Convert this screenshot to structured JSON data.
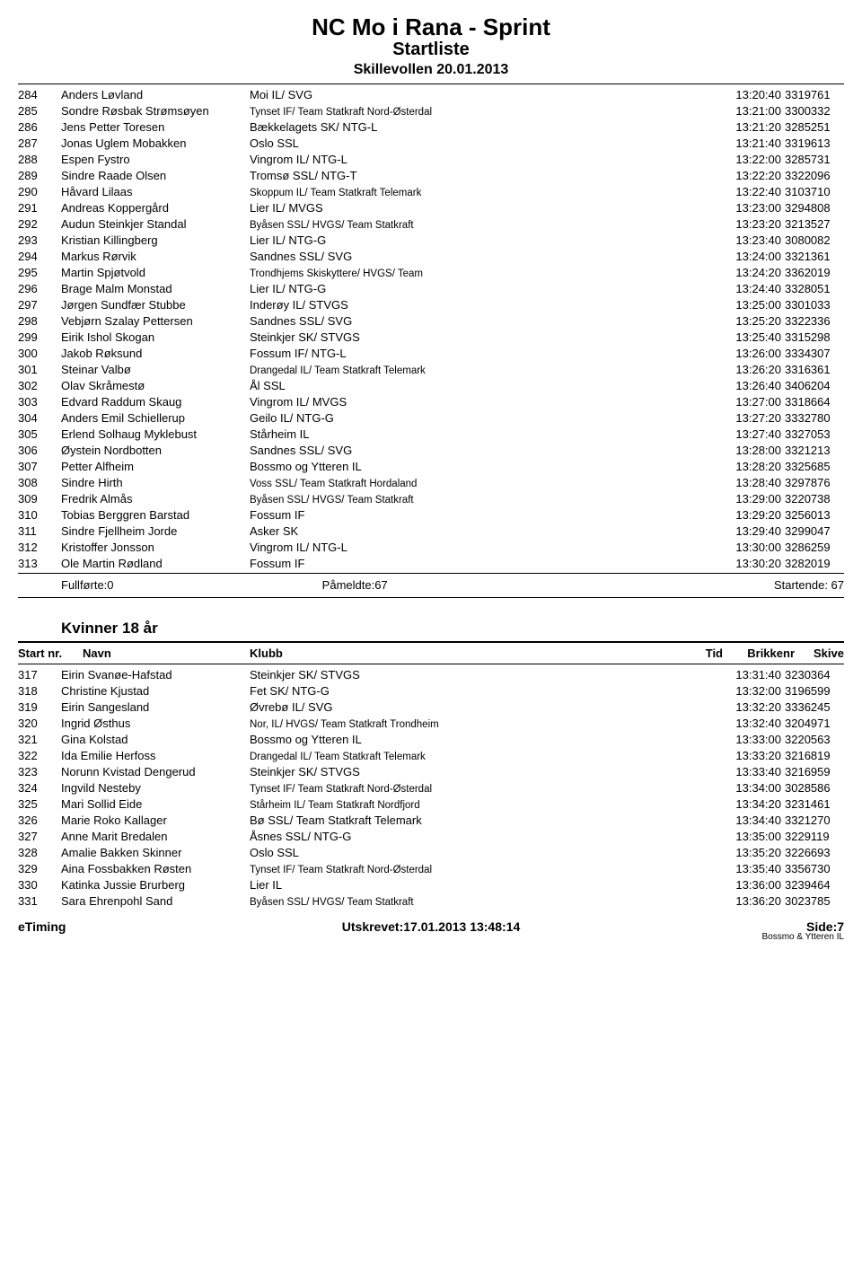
{
  "header": {
    "title": "NC Mo i Rana - Sprint",
    "subtitle": "Startliste",
    "subhead": "Skillevollen 20.01.2013"
  },
  "list1": {
    "rows": [
      {
        "nr": "284",
        "name": "Anders Løvland",
        "club": "Moi IL/ SVG",
        "time": "13:20:40",
        "chip": "3319761",
        "small": false
      },
      {
        "nr": "285",
        "name": "Sondre Røsbak Strømsøyen",
        "club": "Tynset IF/ Team Statkraft Nord-Østerdal",
        "time": "13:21:00",
        "chip": "3300332",
        "small": true
      },
      {
        "nr": "286",
        "name": "Jens Petter Toresen",
        "club": "Bækkelagets SK/ NTG-L",
        "time": "13:21:20",
        "chip": "3285251",
        "small": false
      },
      {
        "nr": "287",
        "name": "Jonas Uglem Mobakken",
        "club": "Oslo SSL",
        "time": "13:21:40",
        "chip": "3319613",
        "small": false
      },
      {
        "nr": "288",
        "name": "Espen Fystro",
        "club": "Vingrom IL/ NTG-L",
        "time": "13:22:00",
        "chip": "3285731",
        "small": false
      },
      {
        "nr": "289",
        "name": "Sindre Raade Olsen",
        "club": "Tromsø SSL/ NTG-T",
        "time": "13:22:20",
        "chip": "3322096",
        "small": false
      },
      {
        "nr": "290",
        "name": "Håvard Lilaas",
        "club": "Skoppum IL/ Team Statkraft Telemark",
        "time": "13:22:40",
        "chip": "3103710",
        "small": true
      },
      {
        "nr": "291",
        "name": "Andreas Koppergård",
        "club": "Lier IL/ MVGS",
        "time": "13:23:00",
        "chip": "3294808",
        "small": false
      },
      {
        "nr": "292",
        "name": "Audun Steinkjer Standal",
        "club": "Byåsen SSL/ HVGS/ Team Statkraft",
        "time": "13:23:20",
        "chip": "3213527",
        "small": true
      },
      {
        "nr": "293",
        "name": "Kristian Killingberg",
        "club": "Lier IL/ NTG-G",
        "time": "13:23:40",
        "chip": "3080082",
        "small": false
      },
      {
        "nr": "294",
        "name": "Markus Rørvik",
        "club": "Sandnes SSL/ SVG",
        "time": "13:24:00",
        "chip": "3321361",
        "small": false
      },
      {
        "nr": "295",
        "name": "Martin Spjøtvold",
        "club": "Trondhjems Skiskyttere/ HVGS/ Team",
        "time": "13:24:20",
        "chip": "3362019",
        "small": true
      },
      {
        "nr": "296",
        "name": "Brage Malm Monstad",
        "club": "Lier IL/ NTG-G",
        "time": "13:24:40",
        "chip": "3328051",
        "small": false
      },
      {
        "nr": "297",
        "name": "Jørgen Sundfær Stubbe",
        "club": "Inderøy IL/ STVGS",
        "time": "13:25:00",
        "chip": "3301033",
        "small": false
      },
      {
        "nr": "298",
        "name": "Vebjørn Szalay Pettersen",
        "club": "Sandnes SSL/ SVG",
        "time": "13:25:20",
        "chip": "3322336",
        "small": false
      },
      {
        "nr": "299",
        "name": "Eirik Ishol Skogan",
        "club": "Steinkjer SK/ STVGS",
        "time": "13:25:40",
        "chip": "3315298",
        "small": false
      },
      {
        "nr": "300",
        "name": "Jakob Røksund",
        "club": "Fossum IF/ NTG-L",
        "time": "13:26:00",
        "chip": "3334307",
        "small": false
      },
      {
        "nr": "301",
        "name": "Steinar Valbø",
        "club": "Drangedal IL/ Team Statkraft Telemark",
        "time": "13:26:20",
        "chip": "3316361",
        "small": true
      },
      {
        "nr": "302",
        "name": "Olav Skråmestø",
        "club": "Ål SSL",
        "time": "13:26:40",
        "chip": "3406204",
        "small": false
      },
      {
        "nr": "303",
        "name": "Edvard Raddum Skaug",
        "club": "Vingrom IL/ MVGS",
        "time": "13:27:00",
        "chip": "3318664",
        "small": false
      },
      {
        "nr": "304",
        "name": "Anders Emil Schiellerup",
        "club": "Geilo IL/ NTG-G",
        "time": "13:27:20",
        "chip": "3332780",
        "small": false
      },
      {
        "nr": "305",
        "name": "Erlend Solhaug Myklebust",
        "club": "Stårheim IL",
        "time": "13:27:40",
        "chip": "3327053",
        "small": false
      },
      {
        "nr": "306",
        "name": "Øystein Nordbotten",
        "club": "Sandnes SSL/ SVG",
        "time": "13:28:00",
        "chip": "3321213",
        "small": false
      },
      {
        "nr": "307",
        "name": "Petter Alfheim",
        "club": "Bossmo og Ytteren IL",
        "time": "13:28:20",
        "chip": "3325685",
        "small": false
      },
      {
        "nr": "308",
        "name": "Sindre Hirth",
        "club": "Voss SSL/ Team Statkraft Hordaland",
        "time": "13:28:40",
        "chip": "3297876",
        "small": true
      },
      {
        "nr": "309",
        "name": "Fredrik Almås",
        "club": "Byåsen SSL/ HVGS/ Team Statkraft",
        "time": "13:29:00",
        "chip": "3220738",
        "small": true
      },
      {
        "nr": "310",
        "name": "Tobias Berggren Barstad",
        "club": "Fossum IF",
        "time": "13:29:20",
        "chip": "3256013",
        "small": false
      },
      {
        "nr": "311",
        "name": "Sindre Fjellheim Jorde",
        "club": "Asker SK",
        "time": "13:29:40",
        "chip": "3299047",
        "small": false
      },
      {
        "nr": "312",
        "name": "Kristoffer Jonsson",
        "club": "Vingrom IL/ NTG-L",
        "time": "13:30:00",
        "chip": "3286259",
        "small": false
      },
      {
        "nr": "313",
        "name": "Ole Martin Rødland",
        "club": "Fossum IF",
        "time": "13:30:20",
        "chip": "3282019",
        "small": false
      }
    ]
  },
  "summary": {
    "completed": "Fullførte:0",
    "registered": "Påmeldte:67",
    "starting": "Startende: 67"
  },
  "category2": {
    "heading": "Kvinner 18 år",
    "headers": {
      "nr": "Start nr.",
      "name": "Navn",
      "club": "Klubb",
      "time": "Tid",
      "chip": "Brikkenr",
      "skive": "Skive"
    },
    "rows": [
      {
        "nr": "317",
        "name": "Eirin Svanøe-Hafstad",
        "club": "Steinkjer SK/ STVGS",
        "time": "13:31:40",
        "chip": "3230364",
        "small": false
      },
      {
        "nr": "318",
        "name": "Christine Kjustad",
        "club": "Fet SK/ NTG-G",
        "time": "13:32:00",
        "chip": "3196599",
        "small": false
      },
      {
        "nr": "319",
        "name": "Eirin Sangesland",
        "club": "Øvrebø IL/ SVG",
        "time": "13:32:20",
        "chip": "3336245",
        "small": false
      },
      {
        "nr": "320",
        "name": "Ingrid Østhus",
        "club": "Nor, IL/ HVGS/ Team Statkraft Trondheim",
        "time": "13:32:40",
        "chip": "3204971",
        "small": true
      },
      {
        "nr": "321",
        "name": "Gina Kolstad",
        "club": "Bossmo og Ytteren IL",
        "time": "13:33:00",
        "chip": "3220563",
        "small": false
      },
      {
        "nr": "322",
        "name": "Ida Emilie Herfoss",
        "club": "Drangedal IL/ Team Statkraft Telemark",
        "time": "13:33:20",
        "chip": "3216819",
        "small": true
      },
      {
        "nr": "323",
        "name": "Norunn Kvistad Dengerud",
        "club": "Steinkjer SK/ STVGS",
        "time": "13:33:40",
        "chip": "3216959",
        "small": false
      },
      {
        "nr": "324",
        "name": "Ingvild Nesteby",
        "club": "Tynset IF/ Team Statkraft Nord-Østerdal",
        "time": "13:34:00",
        "chip": "3028586",
        "small": true
      },
      {
        "nr": "325",
        "name": "Mari Sollid Eide",
        "club": "Stårheim IL/ Team Statkraft Nordfjord",
        "time": "13:34:20",
        "chip": "3231461",
        "small": true
      },
      {
        "nr": "326",
        "name": "Marie Roko Kallager",
        "club": "Bø SSL/ Team Statkraft Telemark",
        "time": "13:34:40",
        "chip": "3321270",
        "small": false
      },
      {
        "nr": "327",
        "name": "Anne Marit Bredalen",
        "club": "Åsnes SSL/ NTG-G",
        "time": "13:35:00",
        "chip": "3229119",
        "small": false
      },
      {
        "nr": "328",
        "name": "Amalie Bakken Skinner",
        "club": "Oslo SSL",
        "time": "13:35:20",
        "chip": "3226693",
        "small": false
      },
      {
        "nr": "329",
        "name": "Aina Fossbakken Røsten",
        "club": "Tynset IF/ Team Statkraft Nord-Østerdal",
        "time": "13:35:40",
        "chip": "3356730",
        "small": true
      },
      {
        "nr": "330",
        "name": "Katinka Jussie Brurberg",
        "club": "Lier IL",
        "time": "13:36:00",
        "chip": "3239464",
        "small": false
      },
      {
        "nr": "331",
        "name": "Sara Ehrenpohl Sand",
        "club": "Byåsen SSL/ HVGS/ Team Statkraft",
        "time": "13:36:20",
        "chip": "3023785",
        "small": true
      }
    ]
  },
  "footer": {
    "left": "eTiming",
    "mid": "Utskrevet:17.01.2013 13:48:14",
    "right": "Side:7",
    "tiny": "Bossmo & Ytteren IL"
  }
}
